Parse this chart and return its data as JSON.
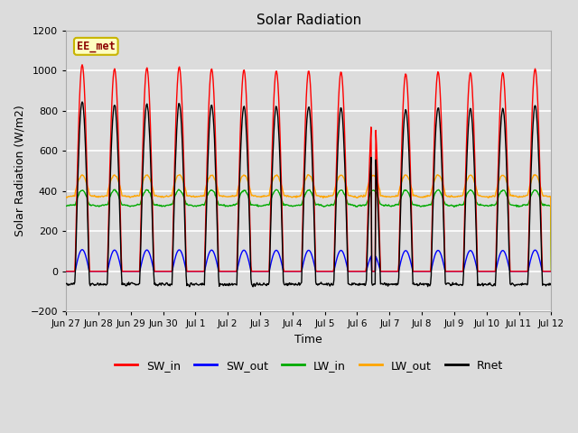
{
  "title": "Solar Radiation",
  "xlabel": "Time",
  "ylabel": "Solar Radiation (W/m2)",
  "ylim": [
    -200,
    1200
  ],
  "yticks": [
    -200,
    0,
    200,
    400,
    600,
    800,
    1000,
    1200
  ],
  "annotation_text": "EE_met",
  "annotation_color": "#8B0000",
  "annotation_bg": "#FFFFC0",
  "annotation_edge": "#C8B400",
  "colors": {
    "SW_in": "#FF0000",
    "SW_out": "#0000FF",
    "LW_in": "#00AA00",
    "LW_out": "#FFA500",
    "Rnet": "#000000"
  },
  "n_days": 15,
  "x_tick_labels": [
    "Jun 27",
    "Jun 28",
    "Jun 29",
    "Jun 30",
    "Jul 1",
    "Jul 2",
    "Jul 3",
    "Jul 4",
    "Jul 5",
    "Jul 6",
    "Jul 7",
    "Jul 8",
    "Jul 9",
    "Jul 10",
    "Jul 11",
    "Jul 12"
  ],
  "bg_color": "#DCDCDC",
  "plot_bg": "#DCDCDC"
}
